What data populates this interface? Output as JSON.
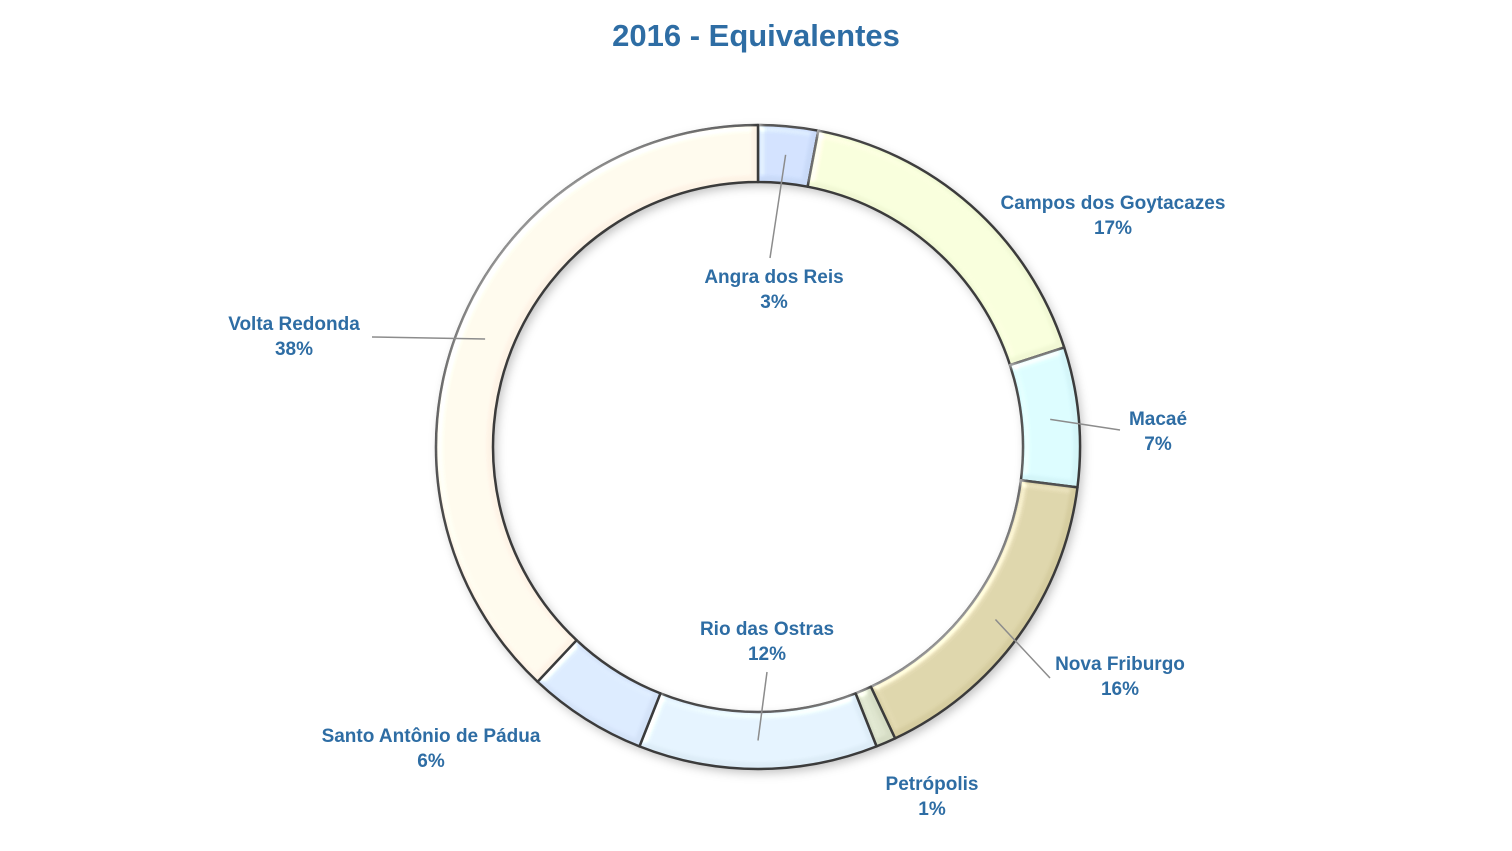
{
  "colors": {
    "title": "#2E6DA4",
    "label": "#2E6DA4",
    "leader": "#8c8c8c"
  },
  "chart_data": {
    "type": "pie",
    "subtype": "donut",
    "title": "2016  - Equivalentes",
    "legend": "none",
    "slices": [
      {
        "label": "Angra dos Reis",
        "value": 3,
        "value_label": "3%",
        "color": "#c9daf8"
      },
      {
        "label": "Campos dos Goytacazes",
        "value": 17,
        "value_label": "17%",
        "color": "#f1f8d4"
      },
      {
        "label": "Macaé",
        "value": 7,
        "value_label": "7%",
        "color": "#d3f5f8"
      },
      {
        "label": "Nova Friburgo",
        "value": 16,
        "value_label": "16%",
        "color": "#d6cda0"
      },
      {
        "label": "Petrópolis",
        "value": 1,
        "value_label": "1%",
        "color": "#d5dcc4"
      },
      {
        "label": "Rio das Ostras",
        "value": 12,
        "value_label": "12%",
        "color": "#ddecf7"
      },
      {
        "label": "Santo Antônio de Pádua",
        "value": 6,
        "value_label": "6%",
        "color": "#d4e3f8"
      },
      {
        "label": "Volta Redonda",
        "value": 38,
        "value_label": "38%",
        "color": "#fdf3e6"
      }
    ]
  }
}
